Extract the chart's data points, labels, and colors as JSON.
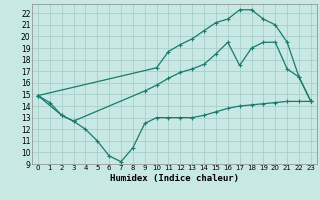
{
  "title": "",
  "xlabel": "Humidex (Indice chaleur)",
  "ylabel": "",
  "background_color": "#c8e8e4",
  "grid_color": "#aacfca",
  "line_color": "#1a7a6e",
  "xlim": [
    -0.5,
    23.5
  ],
  "ylim": [
    9,
    22.8
  ],
  "yticks": [
    9,
    10,
    11,
    12,
    13,
    14,
    15,
    16,
    17,
    18,
    19,
    20,
    21,
    22
  ],
  "xticks": [
    0,
    1,
    2,
    3,
    4,
    5,
    6,
    7,
    8,
    9,
    10,
    11,
    12,
    13,
    14,
    15,
    16,
    17,
    18,
    19,
    20,
    21,
    22,
    23
  ],
  "series": [
    {
      "x": [
        0,
        1,
        2,
        3,
        4,
        5,
        6,
        7,
        8,
        9,
        10,
        11,
        12,
        13,
        14,
        15,
        16,
        17,
        18,
        19,
        20,
        21,
        22,
        23
      ],
      "y": [
        14.9,
        14.3,
        13.2,
        12.7,
        12.0,
        11.0,
        9.7,
        9.2,
        10.4,
        12.5,
        13.0,
        13.0,
        13.0,
        13.0,
        13.2,
        13.5,
        13.8,
        14.0,
        14.1,
        14.2,
        14.3,
        14.4,
        14.4,
        14.4
      ]
    },
    {
      "x": [
        0,
        2,
        3,
        9,
        10,
        11,
        12,
        13,
        14,
        15,
        16,
        17,
        18,
        19,
        20,
        21,
        22,
        23
      ],
      "y": [
        14.9,
        13.2,
        12.7,
        15.3,
        15.8,
        16.4,
        16.9,
        17.2,
        17.6,
        18.5,
        19.5,
        17.5,
        19.0,
        19.5,
        19.5,
        17.2,
        16.5,
        14.4
      ]
    },
    {
      "x": [
        0,
        10,
        11,
        12,
        13,
        14,
        15,
        16,
        17,
        18,
        19,
        20,
        21,
        22,
        23
      ],
      "y": [
        14.9,
        17.3,
        18.7,
        19.3,
        19.8,
        20.5,
        21.2,
        21.5,
        22.3,
        22.3,
        21.5,
        21.0,
        19.5,
        16.5,
        14.4
      ]
    }
  ]
}
